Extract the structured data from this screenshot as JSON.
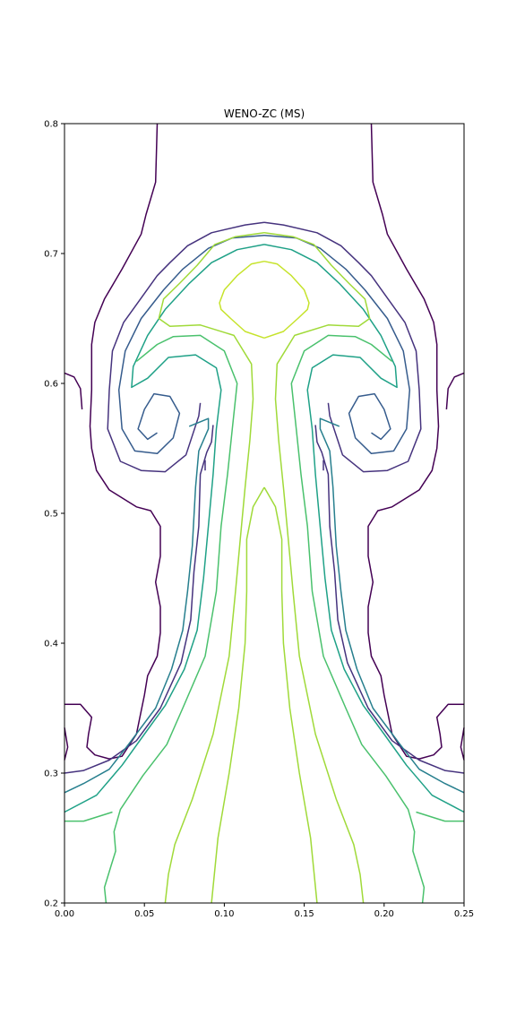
{
  "chart_data": {
    "type": "contour",
    "title": "WENO-ZC (MS)",
    "xlabel": "",
    "ylabel": "",
    "xlim": [
      0.0,
      0.25
    ],
    "ylim": [
      0.2,
      0.8
    ],
    "xticks": [
      "0.00",
      "0.05",
      "0.10",
      "0.15",
      "0.20",
      "0.25"
    ],
    "yticks": [
      "0.2",
      "0.3",
      "0.4",
      "0.5",
      "0.6",
      "0.7",
      "0.8"
    ],
    "grid": false,
    "colormap": "viridis",
    "level_colors": [
      "#440154",
      "#46337e",
      "#365c8d",
      "#277f8e",
      "#1fa187",
      "#4ac16d",
      "#a0da39",
      "#c6e32b"
    ],
    "symmetry_axis_x": 0.125,
    "contours": [
      {
        "level_color": "#440154",
        "points": [
          [
            0.058,
            0.8
          ],
          [
            0.057,
            0.755
          ],
          [
            0.051,
            0.73
          ],
          [
            0.048,
            0.715
          ],
          [
            0.036,
            0.688
          ],
          [
            0.025,
            0.665
          ],
          [
            0.019,
            0.647
          ],
          [
            0.017,
            0.63
          ],
          [
            0.017,
            0.595
          ],
          [
            0.016,
            0.567
          ],
          [
            0.017,
            0.55
          ],
          [
            0.02,
            0.533
          ],
          [
            0.028,
            0.518
          ],
          [
            0.045,
            0.505
          ],
          [
            0.054,
            0.502
          ],
          [
            0.06,
            0.49
          ],
          [
            0.06,
            0.467
          ],
          [
            0.057,
            0.447
          ],
          [
            0.06,
            0.428
          ],
          [
            0.06,
            0.408
          ],
          [
            0.058,
            0.39
          ],
          [
            0.052,
            0.375
          ],
          [
            0.05,
            0.36
          ],
          [
            0.045,
            0.33
          ],
          [
            0.036,
            0.313
          ],
          [
            0.028,
            0.311
          ],
          [
            0.019,
            0.314
          ],
          [
            0.014,
            0.32
          ],
          [
            0.015,
            0.33
          ],
          [
            0.017,
            0.343
          ],
          [
            0.01,
            0.353
          ],
          [
            0.0,
            0.353
          ]
        ]
      },
      {
        "level_color": "#440154",
        "points": [
          [
            0.0,
            0.608
          ],
          [
            0.006,
            0.605
          ],
          [
            0.01,
            0.596
          ],
          [
            0.011,
            0.58
          ]
        ]
      },
      {
        "level_color": "#440154",
        "points": [
          [
            0.0,
            0.335
          ],
          [
            0.002,
            0.32
          ],
          [
            0.0,
            0.31
          ]
        ]
      },
      {
        "level_color": "#46337e",
        "points": [
          [
            0.088,
            0.541
          ],
          [
            0.088,
            0.533
          ]
        ]
      },
      {
        "level_color": "#46337e",
        "points": [
          [
            0.125,
            0.724
          ],
          [
            0.113,
            0.722
          ],
          [
            0.092,
            0.716
          ],
          [
            0.077,
            0.706
          ],
          [
            0.066,
            0.693
          ],
          [
            0.058,
            0.683
          ],
          [
            0.047,
            0.664
          ],
          [
            0.037,
            0.647
          ],
          [
            0.03,
            0.625
          ],
          [
            0.028,
            0.595
          ],
          [
            0.027,
            0.565
          ],
          [
            0.035,
            0.54
          ],
          [
            0.048,
            0.533
          ],
          [
            0.063,
            0.532
          ],
          [
            0.076,
            0.545
          ],
          [
            0.084,
            0.575
          ],
          [
            0.085,
            0.585
          ]
        ]
      },
      {
        "level_color": "#46337e",
        "points": [
          [
            0.093,
            0.568
          ],
          [
            0.092,
            0.555
          ],
          [
            0.089,
            0.547
          ],
          [
            0.085,
            0.53
          ],
          [
            0.084,
            0.49
          ],
          [
            0.081,
            0.455
          ],
          [
            0.079,
            0.418
          ],
          [
            0.073,
            0.385
          ],
          [
            0.06,
            0.35
          ],
          [
            0.045,
            0.325
          ],
          [
            0.028,
            0.31
          ],
          [
            0.012,
            0.302
          ],
          [
            0.0,
            0.3
          ]
        ]
      },
      {
        "level_color": "#365c8d",
        "points": [
          [
            0.125,
            0.714
          ],
          [
            0.105,
            0.712
          ],
          [
            0.09,
            0.704
          ],
          [
            0.074,
            0.688
          ],
          [
            0.062,
            0.672
          ],
          [
            0.048,
            0.65
          ],
          [
            0.038,
            0.625
          ],
          [
            0.034,
            0.595
          ],
          [
            0.036,
            0.565
          ],
          [
            0.044,
            0.548
          ],
          [
            0.058,
            0.546
          ],
          [
            0.068,
            0.558
          ],
          [
            0.072,
            0.577
          ],
          [
            0.066,
            0.59
          ],
          [
            0.056,
            0.592
          ],
          [
            0.05,
            0.58
          ],
          [
            0.046,
            0.565
          ],
          [
            0.052,
            0.557
          ],
          [
            0.058,
            0.562
          ]
        ]
      },
      {
        "level_color": "#277f8e",
        "points": [
          [
            0.078,
            0.567
          ],
          [
            0.09,
            0.573
          ],
          [
            0.09,
            0.565
          ],
          [
            0.084,
            0.548
          ],
          [
            0.082,
            0.52
          ],
          [
            0.08,
            0.475
          ],
          [
            0.077,
            0.44
          ],
          [
            0.074,
            0.41
          ],
          [
            0.067,
            0.38
          ],
          [
            0.057,
            0.35
          ],
          [
            0.04,
            0.322
          ],
          [
            0.028,
            0.303
          ],
          [
            0.012,
            0.292
          ],
          [
            0.0,
            0.285
          ]
        ]
      },
      {
        "level_color": "#1fa187",
        "points": [
          [
            0.125,
            0.707
          ],
          [
            0.108,
            0.703
          ],
          [
            0.092,
            0.693
          ],
          [
            0.078,
            0.677
          ],
          [
            0.063,
            0.657
          ],
          [
            0.052,
            0.637
          ],
          [
            0.043,
            0.613
          ],
          [
            0.042,
            0.597
          ],
          [
            0.052,
            0.604
          ],
          [
            0.065,
            0.62
          ],
          [
            0.082,
            0.622
          ],
          [
            0.095,
            0.612
          ],
          [
            0.098,
            0.595
          ],
          [
            0.095,
            0.565
          ],
          [
            0.093,
            0.53
          ],
          [
            0.09,
            0.49
          ],
          [
            0.087,
            0.45
          ],
          [
            0.083,
            0.41
          ],
          [
            0.075,
            0.38
          ],
          [
            0.063,
            0.352
          ],
          [
            0.05,
            0.33
          ],
          [
            0.036,
            0.306
          ],
          [
            0.02,
            0.283
          ],
          [
            0.0,
            0.27
          ]
        ]
      },
      {
        "level_color": "#4ac16d",
        "points": [
          [
            0.045,
            0.617
          ],
          [
            0.058,
            0.63
          ],
          [
            0.068,
            0.636
          ],
          [
            0.085,
            0.637
          ],
          [
            0.1,
            0.625
          ],
          [
            0.108,
            0.6
          ],
          [
            0.105,
            0.565
          ],
          [
            0.102,
            0.53
          ],
          [
            0.098,
            0.49
          ],
          [
            0.095,
            0.44
          ],
          [
            0.088,
            0.39
          ],
          [
            0.074,
            0.35
          ],
          [
            0.064,
            0.322
          ],
          [
            0.049,
            0.298
          ],
          [
            0.035,
            0.272
          ],
          [
            0.031,
            0.255
          ],
          [
            0.032,
            0.24
          ],
          [
            0.029,
            0.228
          ],
          [
            0.025,
            0.212
          ],
          [
            0.026,
            0.2
          ]
        ]
      },
      {
        "level_color": "#4ac16d",
        "points": [
          [
            0.0,
            0.263
          ],
          [
            0.012,
            0.263
          ],
          [
            0.03,
            0.27
          ]
        ]
      },
      {
        "level_color": "#a0da39",
        "points": [
          [
            0.125,
            0.716
          ],
          [
            0.107,
            0.713
          ],
          [
            0.094,
            0.707
          ],
          [
            0.083,
            0.691
          ],
          [
            0.072,
            0.677
          ],
          [
            0.062,
            0.665
          ],
          [
            0.059,
            0.65
          ],
          [
            0.066,
            0.644
          ],
          [
            0.085,
            0.645
          ],
          [
            0.106,
            0.637
          ],
          [
            0.117,
            0.615
          ],
          [
            0.118,
            0.588
          ],
          [
            0.116,
            0.556
          ],
          [
            0.113,
            0.52
          ],
          [
            0.11,
            0.48
          ],
          [
            0.107,
            0.44
          ],
          [
            0.103,
            0.39
          ],
          [
            0.093,
            0.33
          ],
          [
            0.08,
            0.28
          ],
          [
            0.069,
            0.245
          ],
          [
            0.065,
            0.222
          ],
          [
            0.063,
            0.2
          ]
        ]
      },
      {
        "level_color": "#a0da39",
        "points": [
          [
            0.125,
            0.52
          ],
          [
            0.118,
            0.505
          ],
          [
            0.114,
            0.48
          ],
          [
            0.114,
            0.44
          ],
          [
            0.113,
            0.4
          ],
          [
            0.109,
            0.35
          ],
          [
            0.103,
            0.3
          ],
          [
            0.096,
            0.25
          ],
          [
            0.092,
            0.2
          ]
        ]
      },
      {
        "level_color": "#c6e32b",
        "points": [
          [
            0.125,
            0.635
          ],
          [
            0.113,
            0.64
          ],
          [
            0.104,
            0.65
          ],
          [
            0.098,
            0.657
          ],
          [
            0.097,
            0.662
          ],
          [
            0.1,
            0.672
          ],
          [
            0.108,
            0.683
          ],
          [
            0.117,
            0.692
          ],
          [
            0.125,
            0.694
          ]
        ]
      }
    ]
  }
}
